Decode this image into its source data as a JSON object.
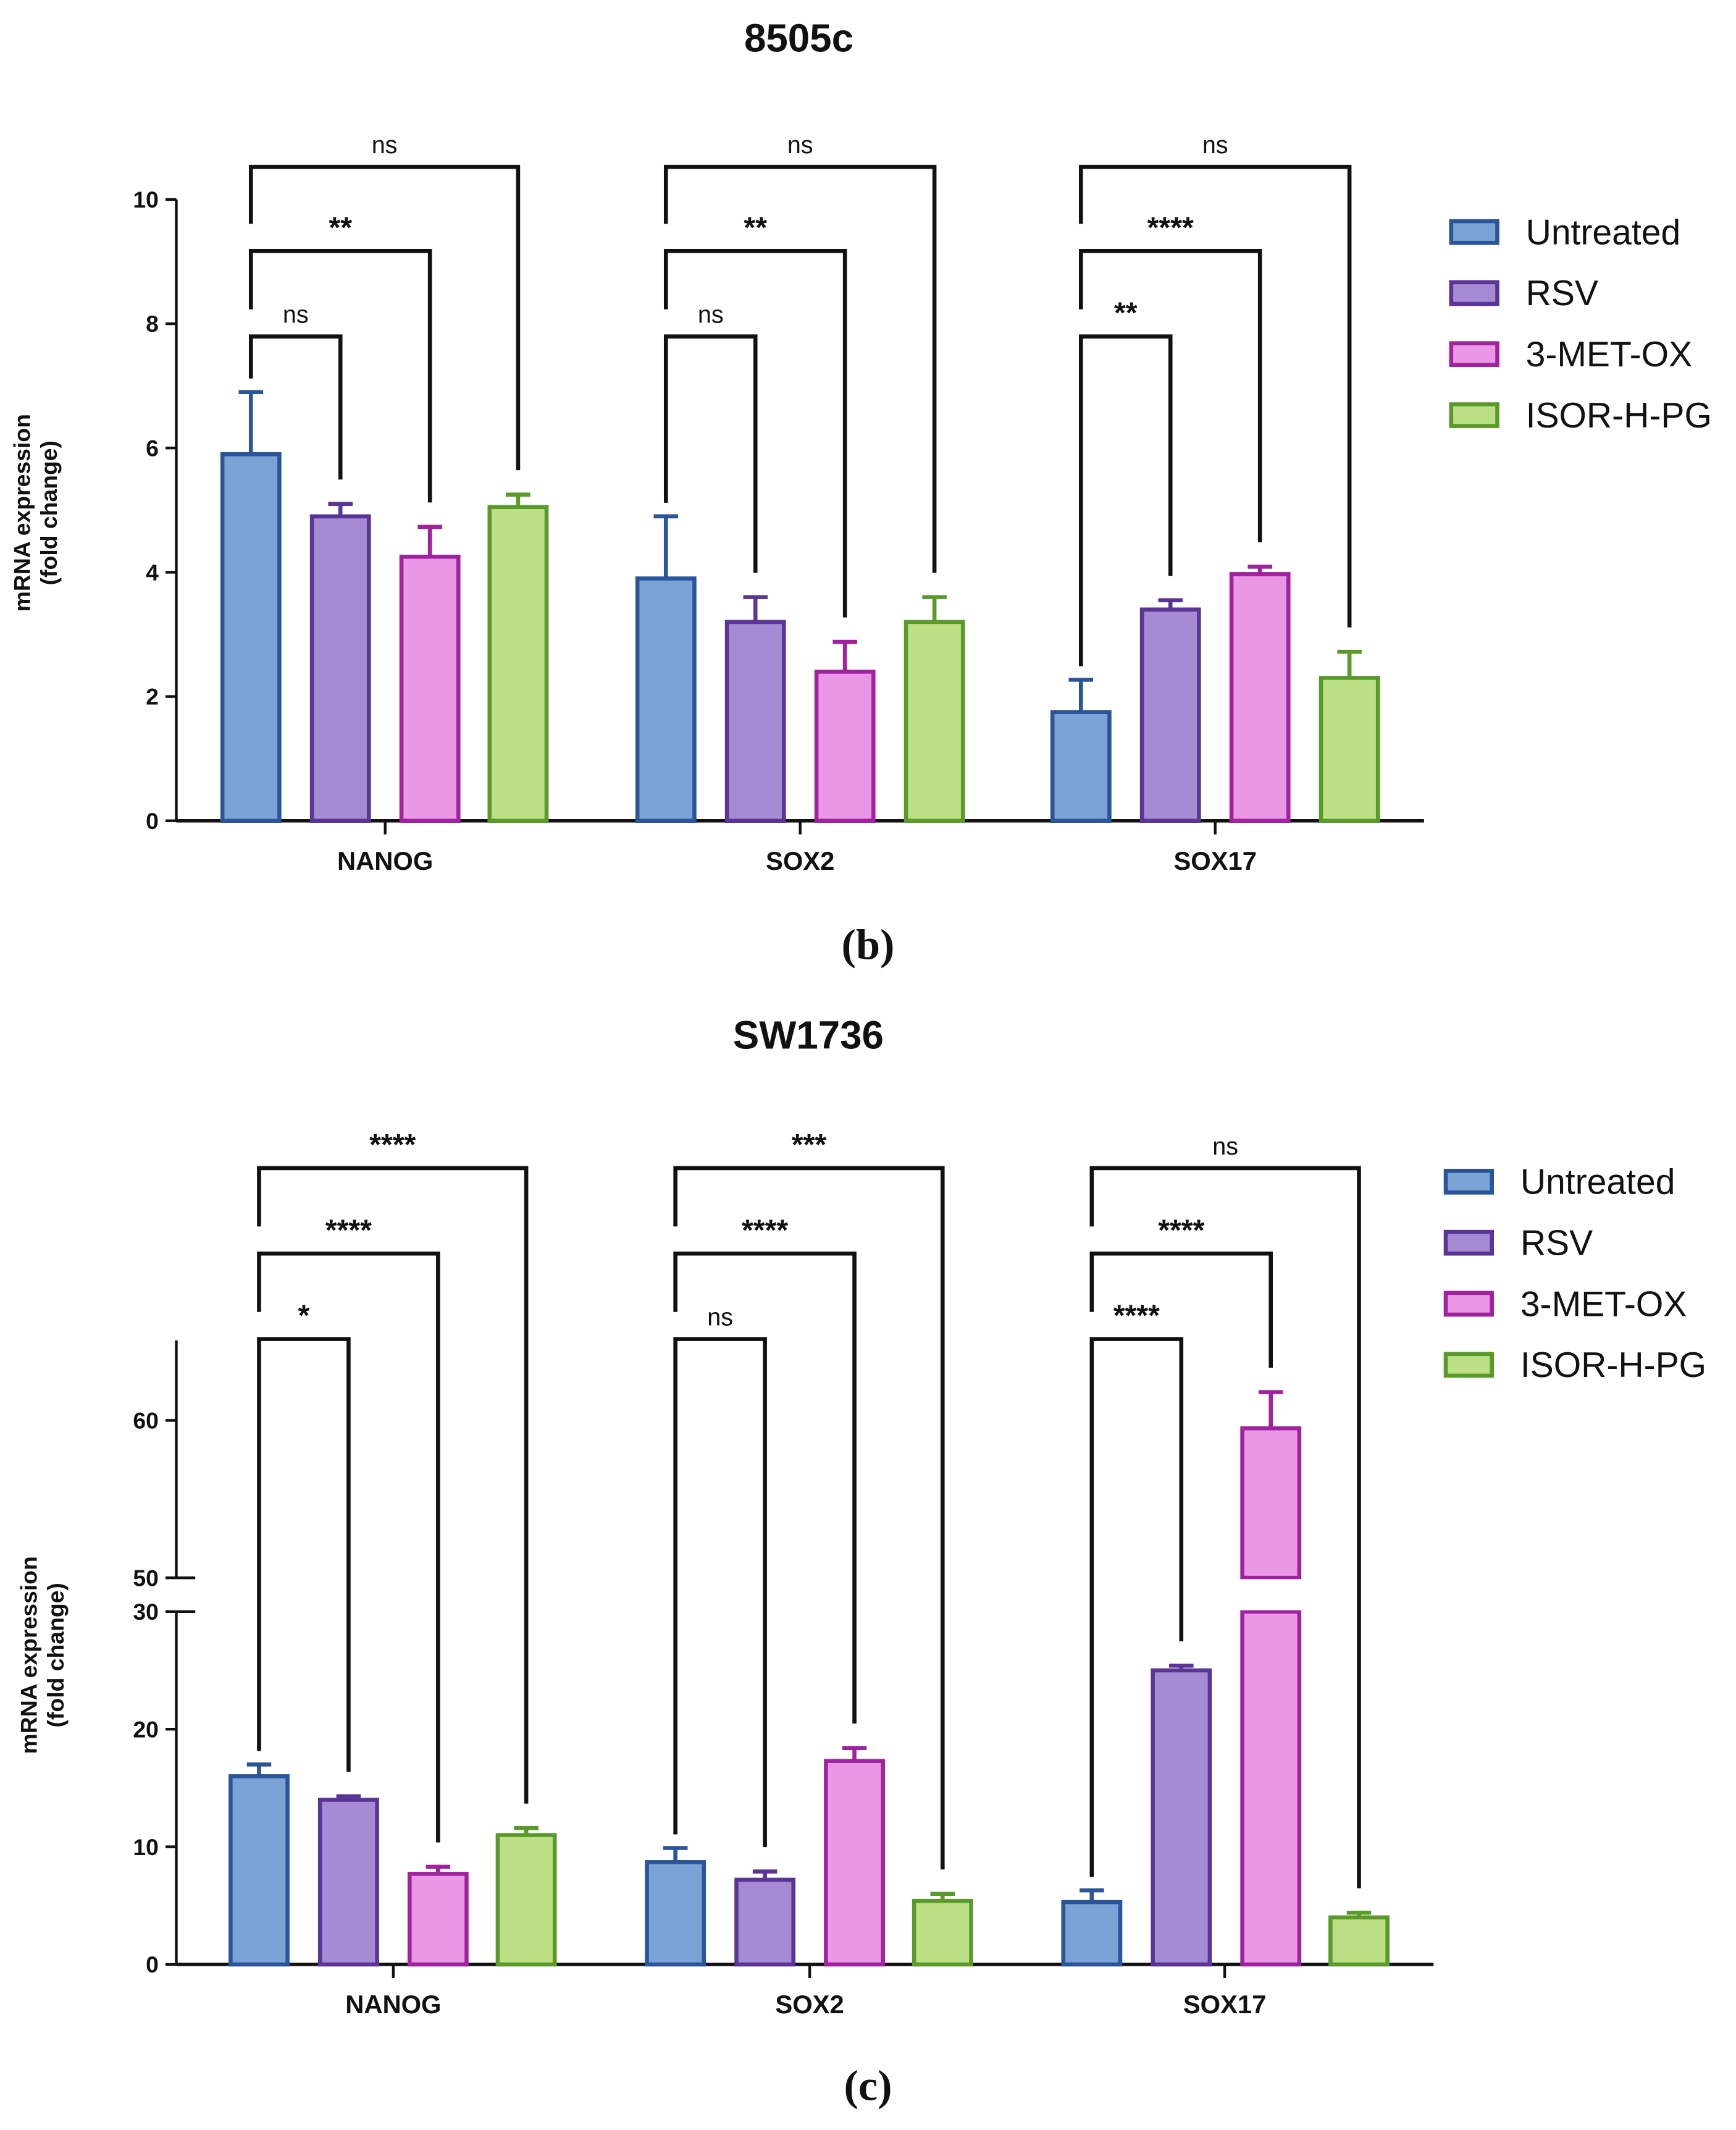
{
  "series_styles": [
    {
      "name": "Untreated",
      "fill": "#7ba3d6",
      "stroke": "#2a5599"
    },
    {
      "name": "RSV",
      "fill": "#a68ad4",
      "stroke": "#5a3596"
    },
    {
      "name": "3-MET-OX",
      "fill": "#ea97e6",
      "stroke": "#a0229f"
    },
    {
      "name": "ISOR-H-PG",
      "fill": "#bde087",
      "stroke": "#5a9a2a"
    }
  ],
  "chart_data": [
    {
      "type": "bar",
      "panel_label": "(b)",
      "title": "8505c",
      "ylabel": [
        "mRNA expression",
        "(fold change)"
      ],
      "xlabel": "",
      "ylim": [
        0,
        10
      ],
      "yticks": [
        0,
        2,
        4,
        6,
        8,
        10
      ],
      "categories": [
        "NANOG",
        "SOX2",
        "SOX17"
      ],
      "legend": {
        "position": "right",
        "entries": [
          "Untreated",
          "RSV",
          "3-MET-OX",
          "ISOR-H-PG"
        ]
      },
      "series": [
        {
          "name": "Untreated",
          "values": [
            5.9,
            3.9,
            1.75
          ],
          "errors": [
            1.0,
            1.0,
            0.52
          ]
        },
        {
          "name": "RSV",
          "values": [
            4.9,
            3.2,
            3.4
          ],
          "errors": [
            0.2,
            0.4,
            0.15
          ]
        },
        {
          "name": "3-MET-OX",
          "values": [
            4.25,
            2.4,
            3.97
          ],
          "errors": [
            0.48,
            0.48,
            0.12
          ]
        },
        {
          "name": "ISOR-H-PG",
          "values": [
            5.05,
            3.2,
            2.3
          ],
          "errors": [
            0.2,
            0.4,
            0.42
          ]
        }
      ],
      "significance": [
        {
          "category": "NANOG",
          "vs_untreated": [
            "ns",
            "**",
            "ns"
          ]
        },
        {
          "category": "SOX2",
          "vs_untreated": [
            "ns",
            "**",
            "ns"
          ]
        },
        {
          "category": "SOX17",
          "vs_untreated": [
            "**",
            "****",
            "ns"
          ]
        }
      ]
    },
    {
      "type": "bar",
      "panel_label": "(c)",
      "title": "SW1736",
      "ylabel": [
        "mRNA expression",
        "(fold change)"
      ],
      "xlabel": "",
      "ylim": [
        0,
        65
      ],
      "axis_break": [
        30,
        50
      ],
      "yticks": [
        0,
        10,
        20,
        30,
        50,
        60
      ],
      "categories": [
        "NANOG",
        "SOX2",
        "SOX17"
      ],
      "legend": {
        "position": "right",
        "entries": [
          "Untreated",
          "RSV",
          "3-MET-OX",
          "ISOR-H-PG"
        ]
      },
      "series": [
        {
          "name": "Untreated",
          "values": [
            16.0,
            8.7,
            5.3
          ],
          "errors": [
            1.0,
            1.2,
            1.0
          ]
        },
        {
          "name": "RSV",
          "values": [
            14.0,
            7.2,
            25.0
          ],
          "errors": [
            0.3,
            0.7,
            0.4
          ]
        },
        {
          "name": "3-MET-OX",
          "values": [
            7.7,
            17.3,
            59.5
          ],
          "errors": [
            0.6,
            1.1,
            2.3
          ]
        },
        {
          "name": "ISOR-H-PG",
          "values": [
            11.0,
            5.4,
            4.0
          ],
          "errors": [
            0.6,
            0.6,
            0.4
          ]
        }
      ],
      "significance": [
        {
          "category": "NANOG",
          "vs_untreated": [
            "*",
            "****",
            "****"
          ]
        },
        {
          "category": "SOX2",
          "vs_untreated": [
            "ns",
            "****",
            "***"
          ]
        },
        {
          "category": "SOX17",
          "vs_untreated": [
            "****",
            "****",
            "ns"
          ]
        }
      ]
    }
  ]
}
